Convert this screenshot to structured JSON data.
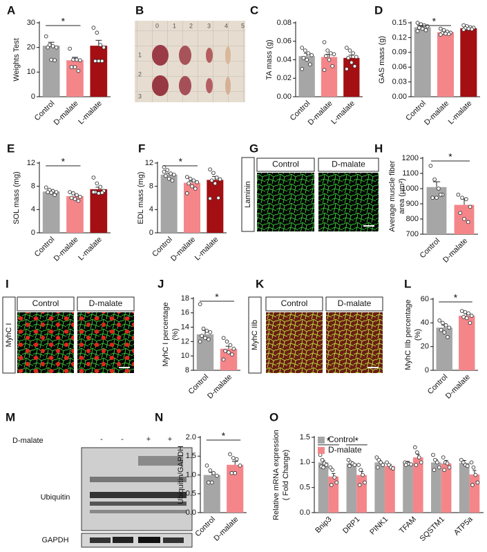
{
  "chart_data": [
    {
      "type": "bar",
      "panel": "A",
      "ylabel": "Weights Test",
      "categories": [
        "Control",
        "D-malate",
        "L-malate"
      ],
      "colors": [
        "#a6a6a6",
        "#f4868a",
        "#a30f12"
      ],
      "values": [
        20.7,
        14.8,
        20.7
      ],
      "errors": [
        1.4,
        1.2,
        2.2
      ],
      "points": [
        [
          24.5,
          21,
          20.5,
          20,
          20,
          15,
          14.8
        ],
        [
          19.5,
          15,
          15,
          14.8,
          12,
          12,
          10.5
        ],
        [
          28,
          26,
          21,
          20,
          14.5,
          14.5,
          14.5
        ]
      ],
      "ylim": [
        0,
        30
      ],
      "yticks": [
        0,
        10,
        20,
        30
      ],
      "significance": [
        {
          "text": "*",
          "between": [
            "Control",
            "D-malate"
          ]
        }
      ]
    },
    {
      "type": "bar",
      "panel": "C",
      "ylabel": "TA mass (g)",
      "categories": [
        "Control",
        "D-malate",
        "L-malate"
      ],
      "colors": [
        "#a6a6a6",
        "#f4868a",
        "#a30f12"
      ],
      "values": [
        0.044,
        0.043,
        0.042
      ],
      "errors": [
        0.003,
        0.003,
        0.003
      ],
      "points": [
        [
          0.053,
          0.05,
          0.047,
          0.045,
          0.042,
          0.04,
          0.035,
          0.03
        ],
        [
          0.059,
          0.05,
          0.047,
          0.046,
          0.044,
          0.04,
          0.033,
          0.029
        ],
        [
          0.053,
          0.05,
          0.047,
          0.043,
          0.042,
          0.037,
          0.033,
          0.03
        ]
      ],
      "ylim": [
        0,
        0.08
      ],
      "yticks": [
        {
          "value": 0,
          "label": "0.00"
        },
        {
          "value": 0.02,
          "label": "0.02"
        },
        {
          "value": 0.04,
          "label": "0.04"
        },
        {
          "value": 0.06,
          "label": "0.06"
        },
        {
          "value": 0.08,
          "label": "0.08"
        }
      ],
      "significance": []
    },
    {
      "type": "bar",
      "panel": "D",
      "ylabel": "GAS mass (g)",
      "categories": [
        "Control",
        "D-malate",
        "L-malate"
      ],
      "colors": [
        "#a6a6a6",
        "#f4868a",
        "#a30f12"
      ],
      "values": [
        0.141,
        0.131,
        0.139
      ],
      "errors": [
        0.002,
        0.002,
        0.001
      ],
      "points": [
        [
          0.15,
          0.147,
          0.145,
          0.143,
          0.14,
          0.138,
          0.135,
          0.133
        ],
        [
          0.138,
          0.135,
          0.132,
          0.13,
          0.129,
          0.128,
          0.127,
          0.126
        ],
        [
          0.145,
          0.143,
          0.141,
          0.14,
          0.139,
          0.138,
          0.137,
          0.136
        ]
      ],
      "ylim": [
        0,
        0.15
      ],
      "yticks": [
        {
          "value": 0,
          "label": "0.00"
        },
        {
          "value": 0.03,
          "label": "0.03"
        },
        {
          "value": 0.06,
          "label": "0.06"
        },
        {
          "value": 0.09,
          "label": "0.09"
        },
        {
          "value": 0.12,
          "label": "0.12"
        },
        {
          "value": 0.15,
          "label": "0.15"
        }
      ],
      "significance": [
        {
          "text": "*",
          "between": [
            "Control",
            "D-malate"
          ]
        }
      ]
    },
    {
      "type": "bar",
      "panel": "E",
      "ylabel": "SOL mass (mg)",
      "categories": [
        "Control",
        "D-malate",
        "L-malate"
      ],
      "colors": [
        "#a6a6a6",
        "#f4868a",
        "#a30f12"
      ],
      "values": [
        7.1,
        6.3,
        7.5
      ],
      "errors": [
        0.2,
        0.25,
        0.35
      ],
      "points": [
        [
          7.8,
          7.4,
          7.2,
          7,
          7,
          6.9,
          6.5
        ],
        [
          7,
          6.8,
          6.5,
          6.2,
          6,
          5.8,
          5.5
        ],
        [
          9.5,
          8.5,
          7.9,
          7.2,
          7,
          6.8,
          6.9,
          7
        ]
      ],
      "ylim": [
        0,
        12
      ],
      "yticks": [
        0,
        4,
        8,
        12
      ],
      "significance": [
        {
          "text": "*",
          "between": [
            "Control",
            "D-malate"
          ]
        }
      ]
    },
    {
      "type": "bar",
      "panel": "F",
      "ylabel": "EDL mass (mg)",
      "categories": [
        "Control",
        "D-malate",
        "L-malate"
      ],
      "colors": [
        "#a6a6a6",
        "#f4868a",
        "#a30f12"
      ],
      "values": [
        10,
        8.6,
        9.1
      ],
      "errors": [
        0.25,
        0.3,
        0.6
      ],
      "points": [
        [
          11.3,
          10.8,
          10.2,
          10,
          9.8,
          9.3,
          9,
          10.5
        ],
        [
          9.6,
          9.3,
          9,
          8.7,
          8.5,
          8,
          7.6,
          6.8
        ],
        [
          10.9,
          10.3,
          9.5,
          9.2,
          9,
          8.5,
          6,
          5.9
        ]
      ],
      "ylim": [
        0,
        12
      ],
      "yticks": [
        0,
        4,
        8,
        12
      ],
      "significance": [
        {
          "text": "*",
          "between": [
            "Control",
            "D-malate"
          ]
        }
      ]
    },
    {
      "type": "bar",
      "panel": "H",
      "ylabel": [
        "Average muscle fiber",
        "area (μm²)"
      ],
      "categories": [
        "Control",
        "D-malate"
      ],
      "colors": [
        "#a6a6a6",
        "#f4868a"
      ],
      "values": [
        1010,
        893
      ],
      "errors": [
        35,
        38
      ],
      "points": [
        [
          1150,
          1060,
          1000,
          960,
          940,
          940,
          960
        ],
        [
          960,
          940,
          930,
          880,
          840,
          800,
          780
        ]
      ],
      "ylim": [
        700,
        1200
      ],
      "yticks": [
        700,
        800,
        900,
        1000,
        1100,
        1200
      ],
      "significance": [
        {
          "text": "*",
          "between": [
            "Control",
            "D-malate"
          ]
        }
      ]
    },
    {
      "type": "bar",
      "panel": "J",
      "ylabel": [
        "MyhC I percentage",
        "(%)"
      ],
      "categories": [
        "Control",
        "D-malate"
      ],
      "colors": [
        "#a6a6a6",
        "#f4868a"
      ],
      "values": [
        13,
        11
      ],
      "errors": [
        0.55,
        0.35
      ],
      "points": [
        [
          17.2,
          13.8,
          13.5,
          13.3,
          12.8,
          12.5,
          12.3,
          12
        ],
        [
          12.5,
          12,
          11.5,
          11,
          10.7,
          10.5,
          10.2,
          9.5
        ]
      ],
      "ylim": [
        8,
        18
      ],
      "yticks": [
        8,
        10,
        12,
        14,
        16,
        18
      ],
      "significance": [
        {
          "text": "*",
          "between": [
            "Control",
            "D-malate"
          ]
        }
      ]
    },
    {
      "type": "bar",
      "panel": "L",
      "ylabel": [
        "MyhC IIb percentage",
        "(%)"
      ],
      "categories": [
        "Control",
        "D-malate"
      ],
      "colors": [
        "#a6a6a6",
        "#f4868a"
      ],
      "values": [
        36,
        46
      ],
      "errors": [
        2,
        1.6
      ],
      "points": [
        [
          42,
          40,
          38,
          36,
          34,
          32,
          28
        ],
        [
          50,
          49,
          48,
          46,
          45,
          44,
          40
        ]
      ],
      "ylim": [
        0,
        60
      ],
      "yticks": [
        0,
        20,
        40,
        60
      ],
      "significance": [
        {
          "text": "*",
          "between": [
            "Control",
            "D-malate"
          ]
        }
      ]
    },
    {
      "type": "bar",
      "panel": "N",
      "ylabel": "Ubiquitin/GAPDH",
      "categories": [
        "Control",
        "D-malate"
      ],
      "colors": [
        "#a6a6a6",
        "#f4868a"
      ],
      "values": [
        1,
        1.27
      ],
      "errors": [
        0.07,
        0.09
      ],
      "points": [
        [
          1.25,
          1.12,
          1.05,
          0.98,
          0.8,
          0.8
        ],
        [
          1.55,
          1.45,
          1.42,
          1.25,
          1.05,
          1.05
        ]
      ],
      "ylim": [
        0,
        2
      ],
      "yticks": [
        {
          "value": 0,
          "label": "0.0"
        },
        0.5,
        {
          "value": 1,
          "label": "1.0"
        },
        1.5,
        {
          "value": 2,
          "label": "2.0"
        }
      ],
      "significance": [
        {
          "text": "*",
          "between": [
            "Control",
            "D-malate"
          ]
        }
      ]
    },
    {
      "type": "grouped_bar",
      "panel": "O",
      "ylabel": [
        "Relative mRNA expression",
        "( Fold Change)"
      ],
      "categories": [
        "Bnip3",
        "DRP1",
        "PINK1",
        "TFAM",
        "SQSTM1",
        "ATP5a"
      ],
      "series": [
        {
          "name": "Control",
          "color": "#a6a6a6",
          "values": [
            1,
            0.98,
            1,
            0.98,
            1,
            0.99
          ],
          "errors": [
            0.04,
            0.03,
            0.04,
            0.04,
            0.05,
            0.05
          ],
          "points": [
            [
              1.15,
              1.05,
              0.98,
              0.95,
              0.92,
              0.9
            ],
            [
              1.05,
              1,
              0.98,
              0.95,
              0.93
            ],
            [
              1.1,
              1.05,
              1,
              0.95,
              0.9
            ],
            [
              1,
              0.98,
              0.97,
              0.96,
              0.95
            ],
            [
              1.15,
              1.05,
              1,
              0.9,
              0.85
            ],
            [
              1.05,
              1,
              0.95,
              0.93
            ]
          ]
        },
        {
          "name": "D-malate",
          "color": "#f4868a",
          "values": [
            0.72,
            0.75,
            0.93,
            1.1,
            0.98,
            0.76
          ],
          "errors": [
            0.06,
            0.07,
            0.03,
            0.06,
            0.06,
            0.08
          ],
          "points": [
            [
              0.9,
              0.85,
              0.7,
              0.6,
              0.55
            ],
            [
              0.95,
              0.85,
              0.75,
              0.6,
              0.55
            ],
            [
              1,
              0.95,
              0.9,
              0.88
            ],
            [
              1.3,
              1.2,
              1.1,
              1,
              0.95
            ],
            [
              1.1,
              1,
              0.98,
              0.9,
              0.85
            ],
            [
              1,
              0.9,
              0.75,
              0.6,
              0.55
            ]
          ]
        }
      ],
      "ylim": [
        0,
        1.5
      ],
      "yticks": [
        {
          "value": 0,
          "label": "0.0"
        },
        0.5,
        {
          "value": 1,
          "label": "1.0"
        },
        1.5
      ],
      "significance": [
        {
          "text": "*",
          "category": "Bnip3"
        },
        {
          "text": "*",
          "category": "DRP1"
        }
      ]
    }
  ],
  "photo": {
    "panel": "B",
    "ruler_top": [
      "0",
      "1",
      "2",
      "3",
      "4",
      "5"
    ],
    "ruler_left": [
      "1",
      "2",
      "3"
    ]
  },
  "image_panels": [
    {
      "panel": "G",
      "stain": "Laminin",
      "columns": [
        "Control",
        "D-malate"
      ]
    },
    {
      "panel": "I",
      "stain": "MyhC I",
      "columns": [
        "Control",
        "D-malate"
      ]
    },
    {
      "panel": "K",
      "stain": "MyhC IIb",
      "columns": [
        "Control",
        "D-malate"
      ]
    }
  ],
  "blot": {
    "panel": "M",
    "treatment": "D-malate",
    "lanes": [
      "-",
      "-",
      "+",
      "+"
    ],
    "proteins": [
      "Ubiquitin",
      "GAPDH"
    ]
  }
}
